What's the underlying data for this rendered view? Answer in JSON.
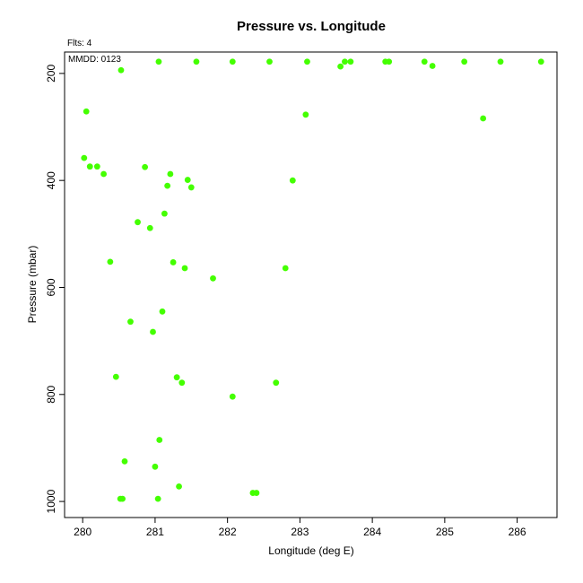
{
  "chart_data": {
    "type": "scatter",
    "title": "Pressure vs. Longitude",
    "annotations": {
      "flts": "Flts: 4",
      "mmdd": "MMDD: 0123"
    },
    "xlabel": "Longitude (deg E)",
    "ylabel": "Pressure (mbar)",
    "xlim": [
      279.75,
      286.55
    ],
    "ylim": [
      1030,
      160
    ],
    "y_axis_inverted": true,
    "xticks": [
      280,
      281,
      282,
      283,
      284,
      285,
      286
    ],
    "yticks": [
      200,
      400,
      600,
      800,
      1000
    ],
    "grid": false,
    "legend": "none",
    "marker_color": "#44ff00",
    "points": [
      {
        "x": 281.05,
        "y": 178
      },
      {
        "x": 281.57,
        "y": 178
      },
      {
        "x": 282.07,
        "y": 178
      },
      {
        "x": 282.58,
        "y": 178
      },
      {
        "x": 283.1,
        "y": 178
      },
      {
        "x": 283.62,
        "y": 178
      },
      {
        "x": 283.7,
        "y": 178
      },
      {
        "x": 284.18,
        "y": 178
      },
      {
        "x": 284.23,
        "y": 178
      },
      {
        "x": 284.72,
        "y": 178
      },
      {
        "x": 285.27,
        "y": 178
      },
      {
        "x": 285.77,
        "y": 178
      },
      {
        "x": 286.33,
        "y": 178
      },
      {
        "x": 283.56,
        "y": 187
      },
      {
        "x": 284.83,
        "y": 186
      },
      {
        "x": 280.53,
        "y": 194
      },
      {
        "x": 280.05,
        "y": 271
      },
      {
        "x": 283.08,
        "y": 277
      },
      {
        "x": 285.53,
        "y": 284
      },
      {
        "x": 280.02,
        "y": 358
      },
      {
        "x": 280.1,
        "y": 374
      },
      {
        "x": 280.2,
        "y": 374
      },
      {
        "x": 280.86,
        "y": 375
      },
      {
        "x": 280.29,
        "y": 388
      },
      {
        "x": 281.21,
        "y": 388
      },
      {
        "x": 281.45,
        "y": 399
      },
      {
        "x": 282.9,
        "y": 400
      },
      {
        "x": 281.17,
        "y": 410
      },
      {
        "x": 281.5,
        "y": 413
      },
      {
        "x": 281.13,
        "y": 462
      },
      {
        "x": 280.76,
        "y": 478
      },
      {
        "x": 280.93,
        "y": 489
      },
      {
        "x": 280.38,
        "y": 552
      },
      {
        "x": 281.25,
        "y": 553
      },
      {
        "x": 281.41,
        "y": 564
      },
      {
        "x": 282.8,
        "y": 564
      },
      {
        "x": 281.8,
        "y": 583
      },
      {
        "x": 281.1,
        "y": 645
      },
      {
        "x": 280.66,
        "y": 664
      },
      {
        "x": 280.97,
        "y": 683
      },
      {
        "x": 280.46,
        "y": 767
      },
      {
        "x": 281.3,
        "y": 768
      },
      {
        "x": 281.37,
        "y": 778
      },
      {
        "x": 282.67,
        "y": 778
      },
      {
        "x": 282.07,
        "y": 804
      },
      {
        "x": 281.06,
        "y": 885
      },
      {
        "x": 280.58,
        "y": 925
      },
      {
        "x": 281.0,
        "y": 935
      },
      {
        "x": 281.33,
        "y": 972
      },
      {
        "x": 282.35,
        "y": 984
      },
      {
        "x": 282.4,
        "y": 984
      },
      {
        "x": 280.52,
        "y": 995
      },
      {
        "x": 280.55,
        "y": 995
      },
      {
        "x": 281.04,
        "y": 995
      }
    ]
  }
}
